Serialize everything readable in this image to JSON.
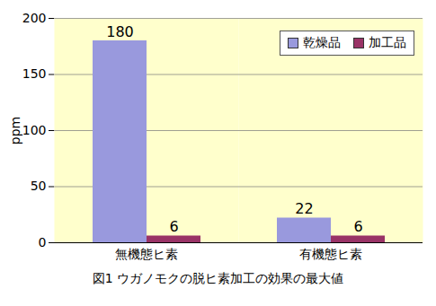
{
  "chart_data": {
    "type": "bar",
    "title": "図1 ウガノモクの脱ヒ素加工の効果の最大値",
    "y_label": "ppm",
    "categories": [
      "無機態ヒ素",
      "有機態ヒ素"
    ],
    "series": [
      {
        "name": "乾燥品",
        "color": "#9999dd",
        "values": [
          180,
          22
        ]
      },
      {
        "name": "加工品",
        "color": "#993366",
        "values": [
          6,
          6
        ]
      }
    ],
    "ylim": [
      0,
      200
    ],
    "yticks": [
      0,
      50,
      100,
      150,
      200
    ],
    "grid": true,
    "data_labels": true,
    "legend": "upper right"
  }
}
